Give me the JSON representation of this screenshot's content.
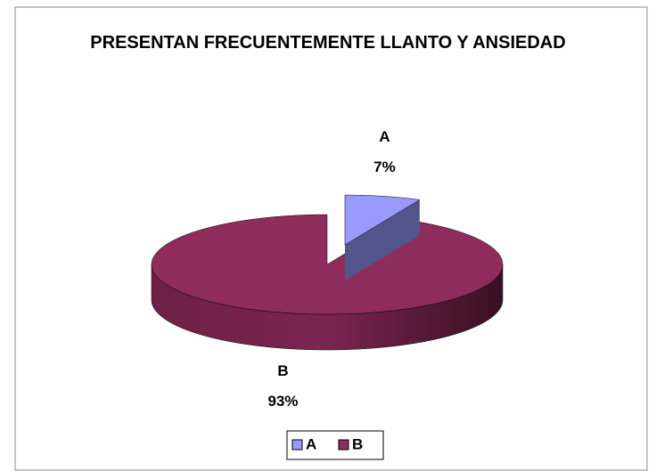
{
  "chart_data": {
    "type": "pie3d",
    "title": "PRESENTAN FRECUENTEMENTE LLANTO Y ANSIEDAD",
    "categories": [
      "A",
      "B"
    ],
    "values": [
      7,
      93
    ],
    "value_labels": [
      "7%",
      "93%"
    ],
    "colors": [
      "#9999ff",
      "#8e2d5c"
    ],
    "legend": "bottom"
  }
}
